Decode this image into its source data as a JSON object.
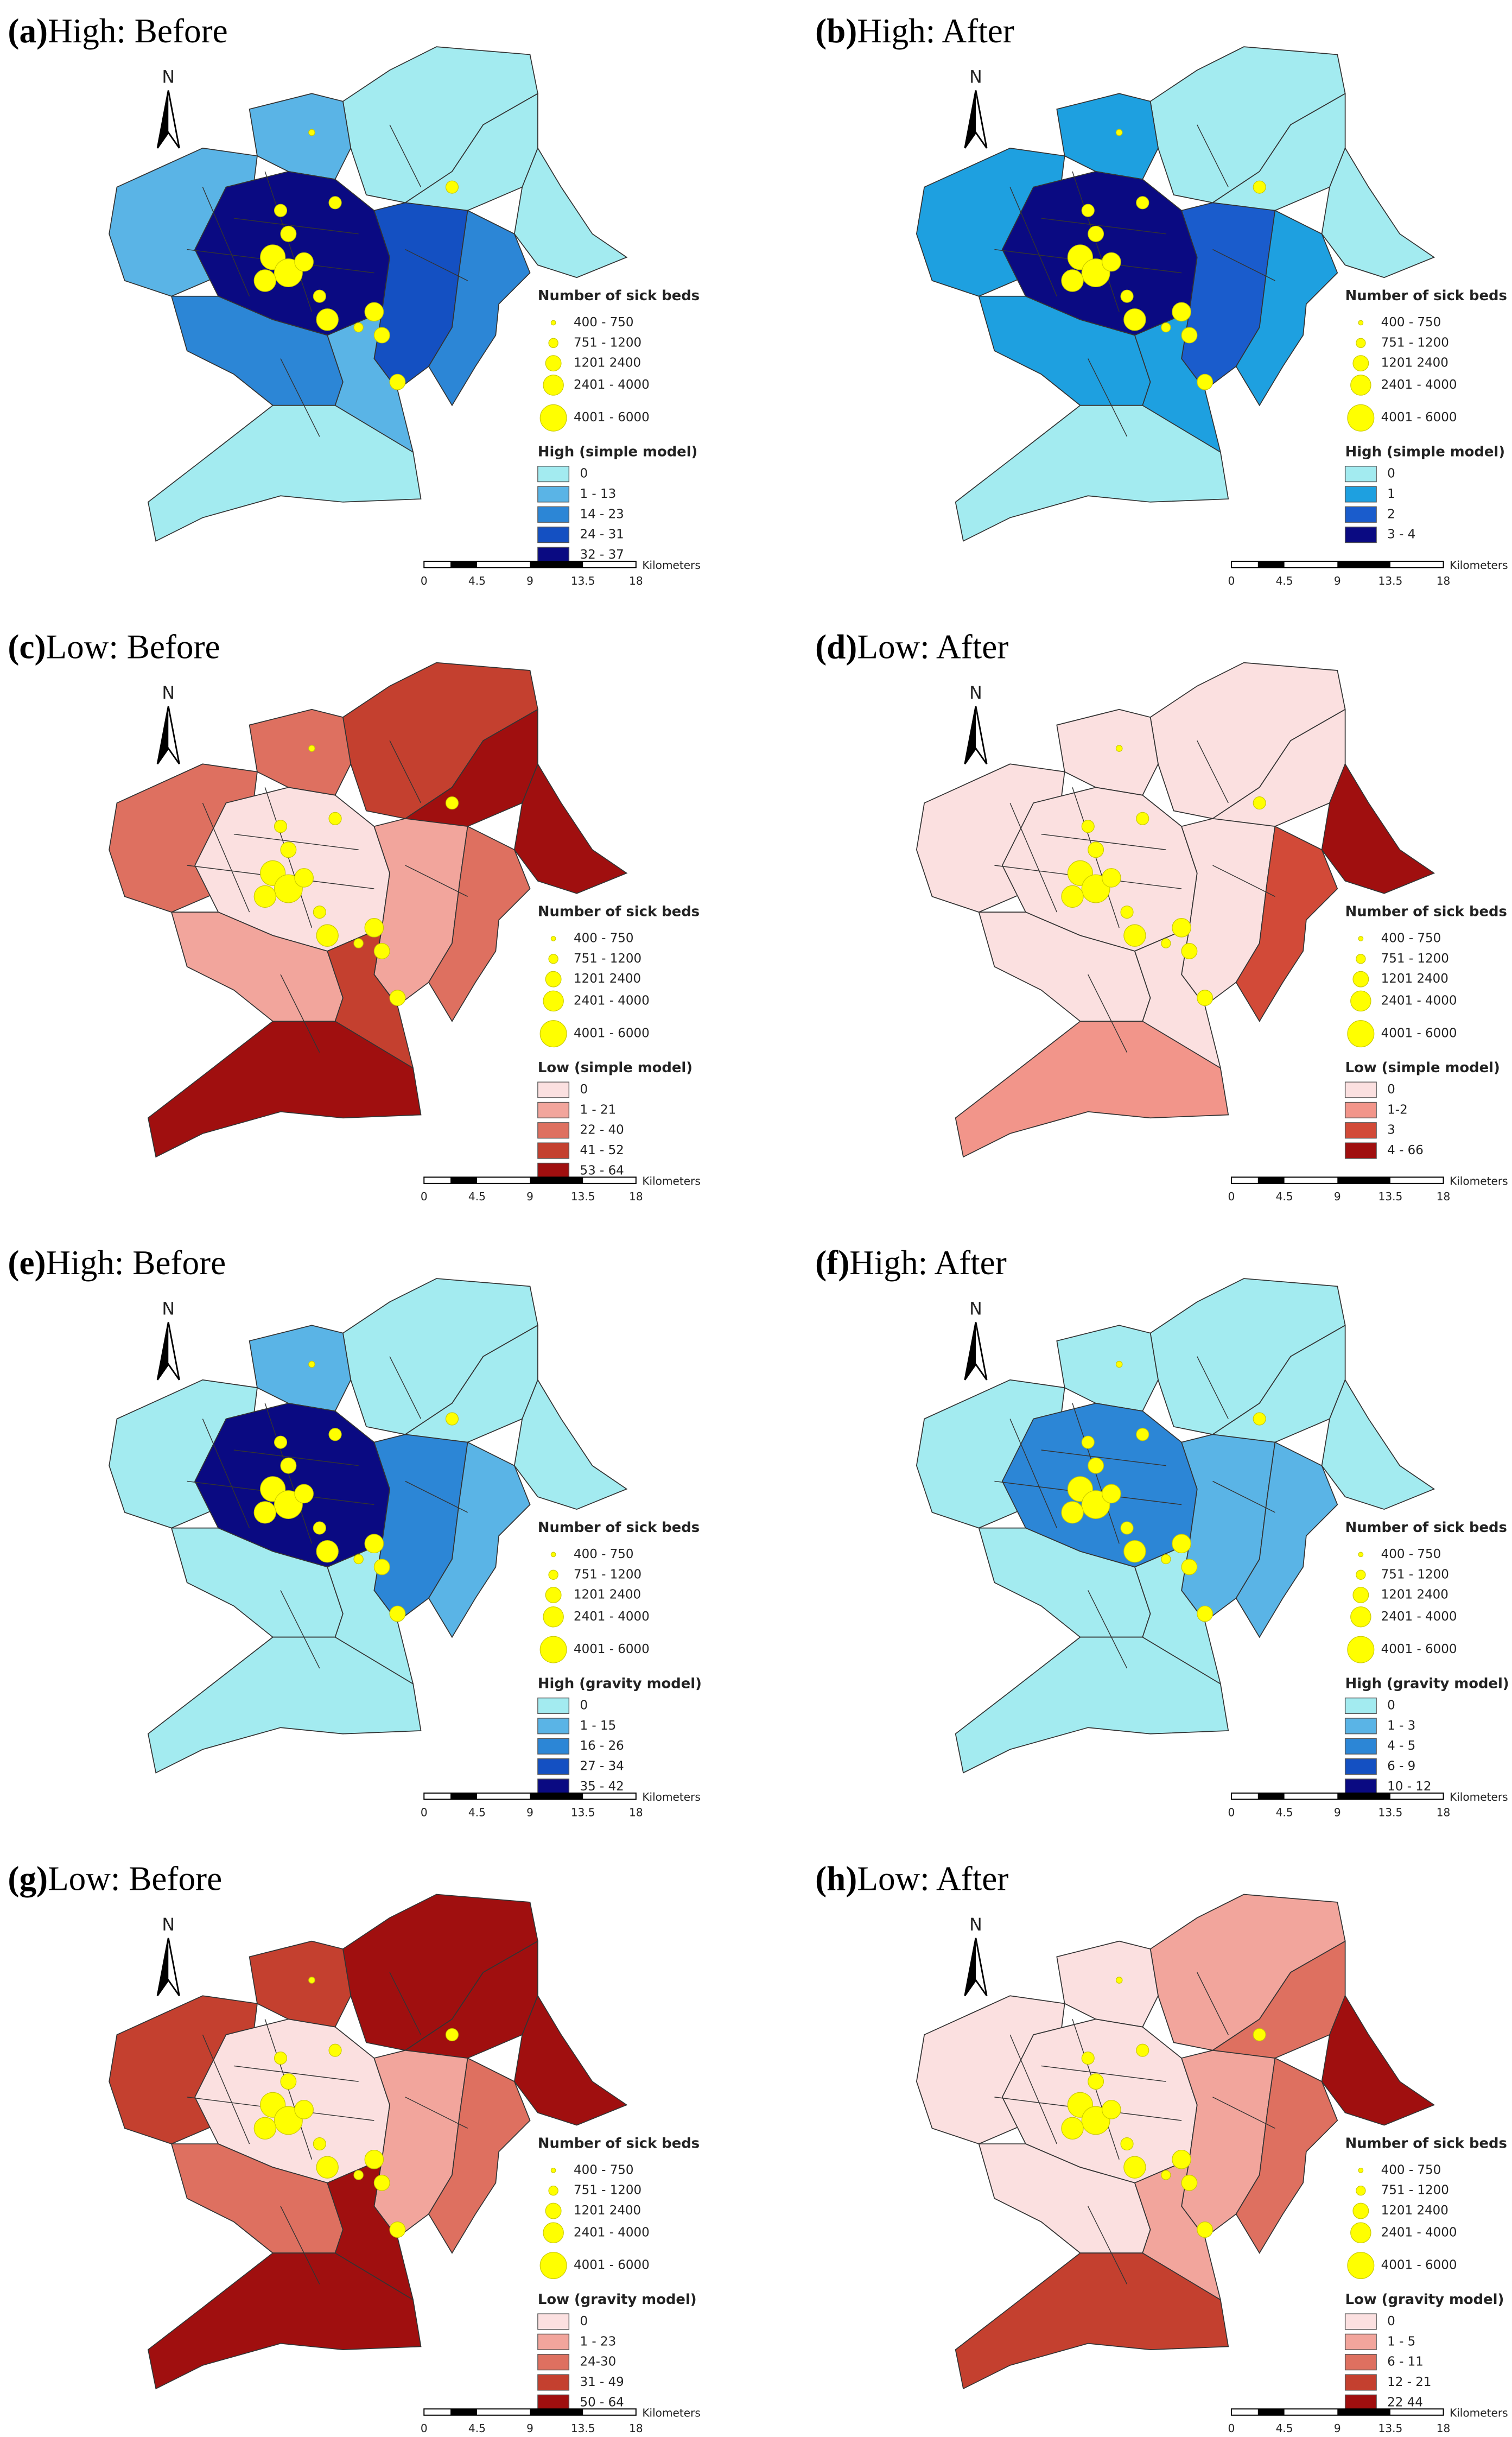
{
  "north": "N",
  "beds_legend": {
    "title": "Number of sick beds",
    "items": [
      "400 - 750",
      "751 - 1200",
      "1201  2400",
      "2401 - 4000",
      "4001 - 6000"
    ]
  },
  "scale_bar": {
    "labels": [
      "0",
      "4.5",
      "9",
      "13.5",
      "18"
    ],
    "unit": "Kilometers"
  },
  "panels": [
    {
      "tag": "(a)",
      "title": "High: Before",
      "legend_title": "High (simple model)",
      "classes": [
        {
          "label": "0",
          "color": "#a3ebf0"
        },
        {
          "label": "1 - 13",
          "color": "#5ab4e6"
        },
        {
          "label": "14 - 23",
          "color": "#2c86d6"
        },
        {
          "label": "24 - 31",
          "color": "#1450c2"
        },
        {
          "label": "32 - 37",
          "color": "#0a0a82"
        }
      ]
    },
    {
      "tag": "(b)",
      "title": "High: After",
      "legend_title": "High (simple model)",
      "classes": [
        {
          "label": "0",
          "color": "#a3ebf0"
        },
        {
          "label": "1",
          "color": "#1ea0e0"
        },
        {
          "label": "2",
          "color": "#1a5ccc"
        },
        {
          "label": "3 - 4",
          "color": "#0a0a82"
        }
      ]
    },
    {
      "tag": "(c)",
      "title": "Low: Before",
      "legend_title": "Low (simple model)",
      "classes": [
        {
          "label": "0",
          "color": "#fbe0e0"
        },
        {
          "label": "1 - 21",
          "color": "#f2a59c"
        },
        {
          "label": "22 - 40",
          "color": "#de7060"
        },
        {
          "label": "41 - 52",
          "color": "#c4402f"
        },
        {
          "label": "53 - 64",
          "color": "#a00f0f"
        }
      ]
    },
    {
      "tag": "(d)",
      "title": "Low: After",
      "legend_title": "Low (simple model)",
      "classes": [
        {
          "label": "0",
          "color": "#fbe0e0"
        },
        {
          "label": "1-2",
          "color": "#f2958a"
        },
        {
          "label": "3",
          "color": "#d24a38"
        },
        {
          "label": "4 - 66",
          "color": "#a00f0f"
        }
      ]
    },
    {
      "tag": "(e)",
      "title": "High: Before",
      "legend_title": "High (gravity model)",
      "classes": [
        {
          "label": "0",
          "color": "#a3ebf0"
        },
        {
          "label": "1 - 15",
          "color": "#5ab4e6"
        },
        {
          "label": "16 - 26",
          "color": "#2c86d6"
        },
        {
          "label": "27 - 34",
          "color": "#1450c2"
        },
        {
          "label": "35 - 42",
          "color": "#0a0a82"
        }
      ]
    },
    {
      "tag": "(f)",
      "title": "High: After",
      "legend_title": "High (gravity model)",
      "classes": [
        {
          "label": "0",
          "color": "#a3ebf0"
        },
        {
          "label": "1 - 3",
          "color": "#5ab4e6"
        },
        {
          "label": "4 - 5",
          "color": "#2c86d6"
        },
        {
          "label": "6 - 9",
          "color": "#1450c2"
        },
        {
          "label": "10 - 12",
          "color": "#0a0a82"
        }
      ]
    },
    {
      "tag": "(g)",
      "title": "Low: Before",
      "legend_title": "Low (gravity model)",
      "classes": [
        {
          "label": "0",
          "color": "#fbe0e0"
        },
        {
          "label": "1 - 23",
          "color": "#f2a59c"
        },
        {
          "label": "24-30",
          "color": "#de7060"
        },
        {
          "label": "31 - 49",
          "color": "#c4402f"
        },
        {
          "label": "50 - 64",
          "color": "#a00f0f"
        }
      ]
    },
    {
      "tag": "(h)",
      "title": "Low: After",
      "legend_title": "Low (gravity model)",
      "classes": [
        {
          "label": "0",
          "color": "#fbe0e0"
        },
        {
          "label": "1 - 5",
          "color": "#f2a59c"
        },
        {
          "label": "6 - 11",
          "color": "#de7060"
        },
        {
          "label": "12 - 21",
          "color": "#c4402f"
        },
        {
          "label": "22  44",
          "color": "#a00f0f"
        }
      ]
    }
  ]
}
